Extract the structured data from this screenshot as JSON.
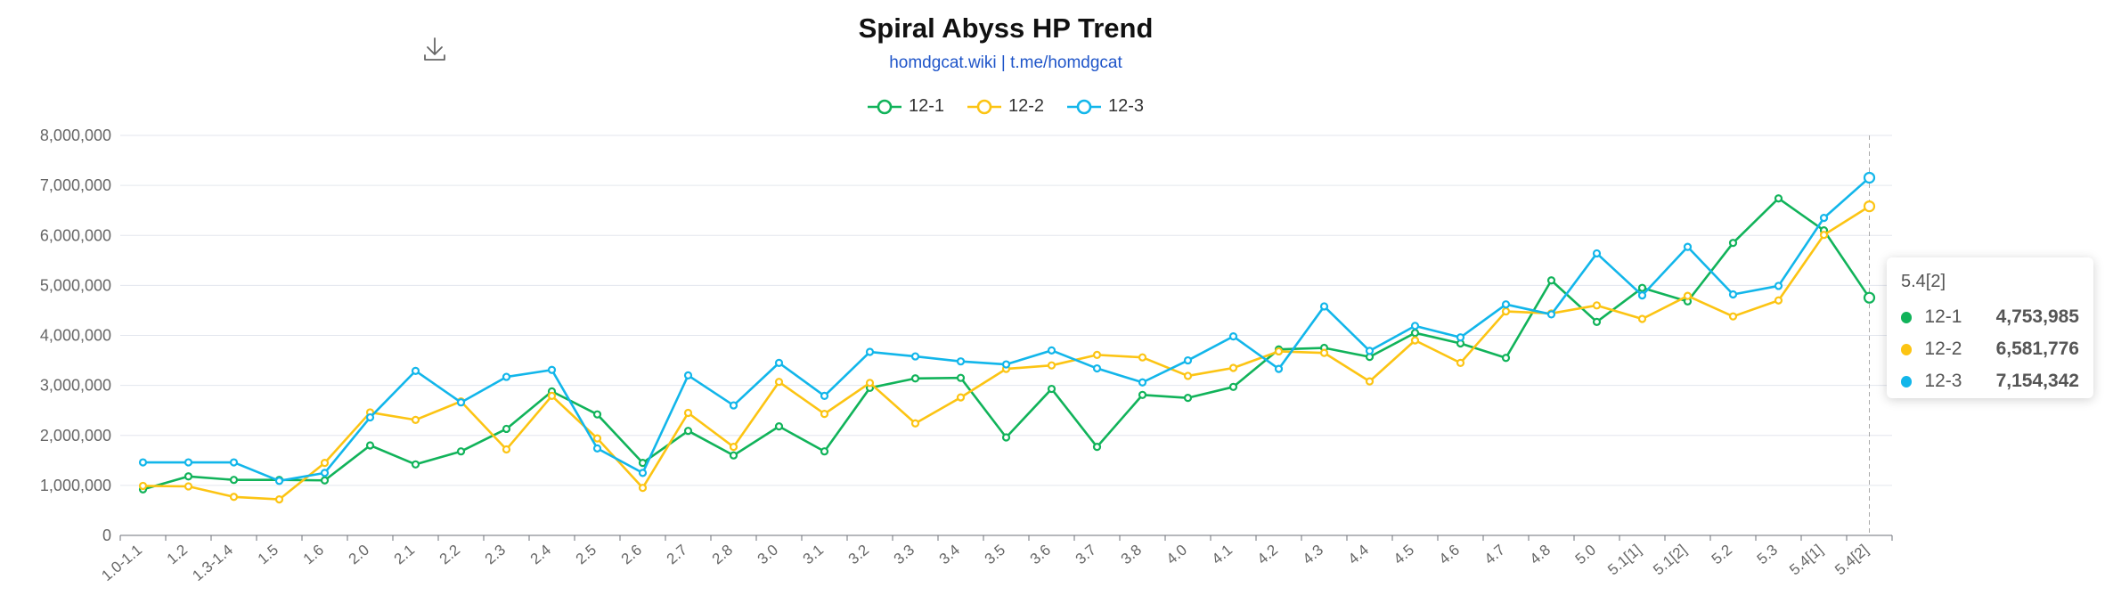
{
  "header": {
    "title": "Spiral Abyss HP Trend",
    "subtitle": "homdgcat.wiki | t.me/homdgcat"
  },
  "toolbox": {
    "download_icon": "download-icon"
  },
  "tooltip": {
    "title": "5.4[2]",
    "rows": [
      {
        "name": "12-1",
        "value": "4,753,985",
        "color": "#11b35a"
      },
      {
        "name": "12-2",
        "value": "6,581,776",
        "color": "#fcc413"
      },
      {
        "name": "12-3",
        "value": "7,154,342",
        "color": "#12b6ea"
      }
    ]
  },
  "chart_data": {
    "type": "line",
    "title": "Spiral Abyss HP Trend",
    "subtitle": "homdgcat.wiki | t.me/homdgcat",
    "xlabel": "",
    "ylabel": "",
    "ylim": [
      0,
      8000000
    ],
    "yticks": [
      "0",
      "1,000,000",
      "2,000,000",
      "3,000,000",
      "4,000,000",
      "5,000,000",
      "6,000,000",
      "7,000,000",
      "8,000,000"
    ],
    "grid": true,
    "legend_position": "top-center",
    "categories": [
      "1.0-1.1",
      "1.2",
      "1.3-1.4",
      "1.5",
      "1.6",
      "2.0",
      "2.1",
      "2.2",
      "2.3",
      "2.4",
      "2.5",
      "2.6",
      "2.7",
      "2.8",
      "3.0",
      "3.1",
      "3.2",
      "3.3",
      "3.4",
      "3.5",
      "3.6",
      "3.7",
      "3.8",
      "4.0",
      "4.1",
      "4.2",
      "4.3",
      "4.4",
      "4.5",
      "4.6",
      "4.7",
      "4.8",
      "5.0",
      "5.1[1]",
      "5.1[2]",
      "5.2",
      "5.3",
      "5.4[1]",
      "5.4[2]"
    ],
    "series": [
      {
        "name": "12-1",
        "color": "#11b35a",
        "values": [
          920000,
          1180000,
          1110000,
          1110000,
          1100000,
          1800000,
          1420000,
          1680000,
          2130000,
          2880000,
          2420000,
          1450000,
          2090000,
          1600000,
          2180000,
          1680000,
          2950000,
          3140000,
          3150000,
          1960000,
          2930000,
          1770000,
          2810000,
          2750000,
          2970000,
          3720000,
          3750000,
          3570000,
          4050000,
          3840000,
          3550000,
          5100000,
          4270000,
          4950000,
          4680000,
          5850000,
          6740000,
          6100000,
          4753985
        ]
      },
      {
        "name": "12-2",
        "color": "#fcc413",
        "values": [
          990000,
          980000,
          770000,
          720000,
          1450000,
          2460000,
          2310000,
          2680000,
          1720000,
          2790000,
          1940000,
          950000,
          2450000,
          1770000,
          3070000,
          2430000,
          3050000,
          2240000,
          2760000,
          3330000,
          3400000,
          3610000,
          3560000,
          3190000,
          3350000,
          3680000,
          3650000,
          3080000,
          3900000,
          3450000,
          4480000,
          4440000,
          4600000,
          4330000,
          4790000,
          4380000,
          4700000,
          6010000,
          6581776
        ]
      },
      {
        "name": "12-3",
        "color": "#12b6ea",
        "values": [
          1460000,
          1460000,
          1460000,
          1090000,
          1250000,
          2360000,
          3290000,
          2660000,
          3170000,
          3310000,
          1740000,
          1250000,
          3200000,
          2600000,
          3450000,
          2790000,
          3670000,
          3580000,
          3480000,
          3420000,
          3700000,
          3340000,
          3060000,
          3500000,
          3980000,
          3330000,
          4580000,
          3690000,
          4190000,
          3960000,
          4620000,
          4420000,
          5640000,
          4800000,
          5770000,
          4820000,
          4990000,
          6350000,
          7154342
        ]
      }
    ],
    "highlighted_category": "5.4[2]"
  }
}
